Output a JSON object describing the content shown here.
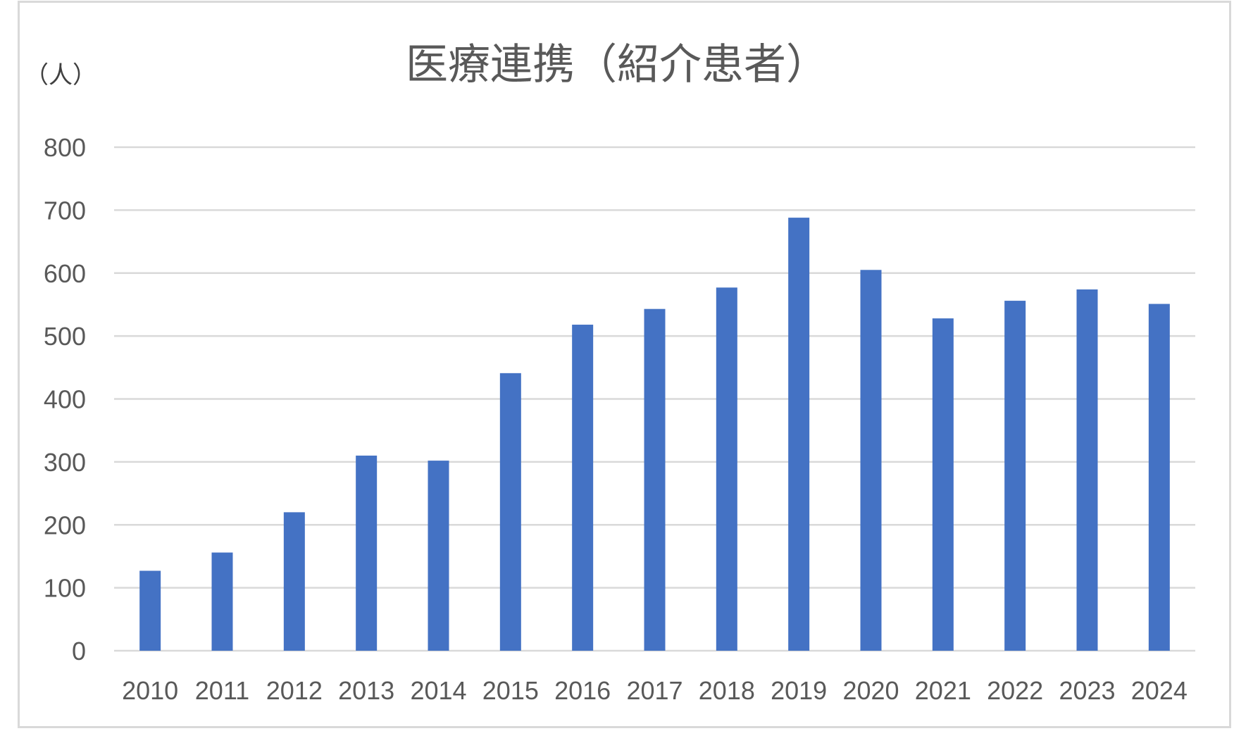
{
  "chart_data": {
    "type": "bar",
    "title": "医療連携（紹介患者）",
    "unit_label": "（人）",
    "xlabel": "",
    "ylabel": "",
    "categories": [
      "2010",
      "2011",
      "2012",
      "2013",
      "2014",
      "2015",
      "2016",
      "2017",
      "2018",
      "2019",
      "2020",
      "2021",
      "2022",
      "2023",
      "2024"
    ],
    "series": [
      {
        "values": [
          127,
          156,
          220,
          310,
          302,
          441,
          518,
          543,
          577,
          688,
          605,
          528,
          556,
          574,
          551
        ],
        "color": "#4472c4"
      }
    ],
    "ylim": [
      0,
      800
    ],
    "yticks": [
      0,
      100,
      200,
      300,
      400,
      500,
      600,
      700,
      800
    ],
    "grid": true,
    "legend": "none"
  }
}
